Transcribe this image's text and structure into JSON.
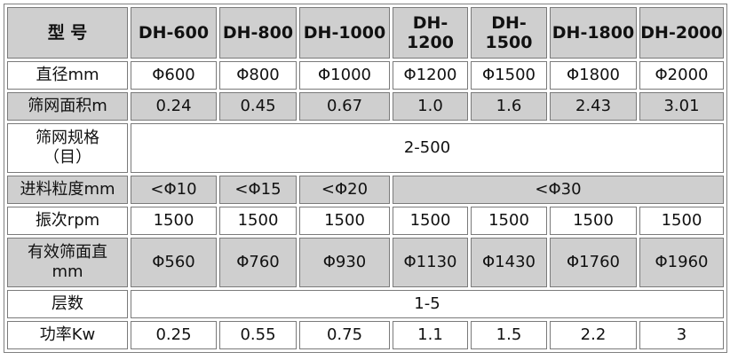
{
  "header": {
    "label": "型 号",
    "models": [
      "DH-600",
      "DH-800",
      "DH-1000",
      "DH-1200",
      "DH-1500",
      "DH-1800",
      "DH-2000"
    ]
  },
  "rows": {
    "diameter": {
      "label": "直径mm",
      "values": [
        "Φ600",
        "Φ800",
        "Φ1000",
        "Φ1200",
        "Φ1500",
        "Φ1800",
        "Φ2000"
      ]
    },
    "area": {
      "label": "筛网面积m",
      "values": [
        "0.24",
        "0.45",
        "0.67",
        "1.0",
        "1.6",
        "2.43",
        "3.01"
      ]
    },
    "mesh": {
      "label": "筛网规格（目）",
      "value": "2-500"
    },
    "feed": {
      "label": "进料粒度mm",
      "values": [
        "<Φ10",
        "<Φ15",
        "<Φ20"
      ],
      "merged": "<Φ30"
    },
    "rpm": {
      "label": "振次rpm",
      "values": [
        "1500",
        "1500",
        "1500",
        "1500",
        "1500",
        "1500",
        "1500"
      ]
    },
    "effective": {
      "label": "有效筛面直mm",
      "values": [
        "Φ560",
        "Φ760",
        "Φ930",
        "Φ1130",
        "Φ1430",
        "Φ1760",
        "Φ1960"
      ]
    },
    "layers": {
      "label": "层数",
      "value": "1-5"
    },
    "power": {
      "label": "功率Kw",
      "values": [
        "0.25",
        "0.55",
        "0.75",
        "1.1",
        "1.5",
        "2.2",
        "3"
      ]
    }
  }
}
